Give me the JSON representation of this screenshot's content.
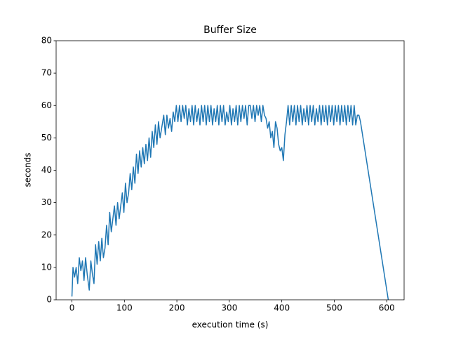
{
  "chart_data": {
    "type": "line",
    "title": "Buffer Size",
    "x_label": "execution time (s)",
    "y_label": "seconds",
    "color": "#1f77b4",
    "x": [
      0,
      2,
      5,
      8,
      11,
      14,
      17,
      20,
      23,
      26,
      29,
      33,
      36,
      39,
      42,
      45,
      48,
      51,
      54,
      57,
      60,
      63,
      66,
      69,
      72,
      75,
      78,
      81,
      84,
      87,
      90,
      93,
      96,
      99,
      102,
      105,
      108,
      111,
      114,
      117,
      120,
      123,
      126,
      129,
      132,
      135,
      138,
      141,
      144,
      147,
      150,
      153,
      156,
      159,
      162,
      165,
      168,
      171,
      175,
      178,
      181,
      184,
      187,
      190,
      193,
      196,
      199,
      202,
      205,
      208,
      211,
      214,
      217,
      220,
      223,
      226,
      229,
      232,
      235,
      238,
      241,
      244,
      247,
      250,
      253,
      256,
      259,
      262,
      265,
      268,
      271,
      274,
      277,
      280,
      283,
      286,
      289,
      292,
      295,
      298,
      301,
      304,
      307,
      310,
      313,
      316,
      319,
      322,
      325,
      328,
      331,
      334,
      337,
      340,
      343,
      346,
      349,
      352,
      355,
      358,
      361,
      364,
      367,
      370,
      373,
      376,
      379,
      382,
      385,
      388,
      391,
      394,
      397,
      400,
      403,
      406,
      409,
      412,
      415,
      418,
      421,
      424,
      427,
      430,
      433,
      436,
      439,
      442,
      445,
      448,
      451,
      454,
      457,
      460,
      463,
      466,
      469,
      472,
      475,
      478,
      481,
      484,
      487,
      490,
      493,
      496,
      499,
      502,
      505,
      508,
      511,
      514,
      517,
      520,
      523,
      526,
      529,
      532,
      535,
      538,
      541,
      544,
      547,
      550,
      603
    ],
    "values": [
      1,
      10,
      7,
      10,
      5,
      13,
      9,
      12,
      6,
      13,
      8,
      3,
      12,
      8,
      5,
      17,
      11,
      18,
      12,
      19,
      13,
      16,
      23,
      17,
      27,
      21,
      25,
      29,
      23,
      30,
      25,
      29,
      33,
      27,
      36,
      30,
      33,
      39,
      34,
      41,
      36,
      45,
      39,
      46,
      41,
      47,
      42,
      48,
      43,
      50,
      44,
      52,
      47,
      54,
      48,
      55,
      50,
      53,
      57,
      51,
      57,
      53,
      56,
      52,
      58,
      55,
      60,
      55,
      60,
      55,
      60,
      56,
      60,
      54,
      59,
      55,
      60,
      54,
      60,
      55,
      59,
      54,
      60,
      55,
      60,
      54,
      60,
      55,
      60,
      54,
      59,
      55,
      60,
      54,
      60,
      55,
      60,
      54,
      58,
      55,
      60,
      54,
      59,
      55,
      60,
      54,
      60,
      55,
      60,
      56,
      60,
      54,
      60,
      60,
      56,
      60,
      55,
      60,
      57,
      60,
      55,
      60,
      57,
      56,
      53,
      55,
      50,
      52,
      47,
      55,
      53,
      48,
      46,
      47,
      43,
      51,
      55,
      60,
      54,
      60,
      55,
      60,
      54,
      60,
      55,
      60,
      54,
      59,
      55,
      60,
      54,
      60,
      55,
      60,
      54,
      59,
      55,
      60,
      54,
      60,
      55,
      60,
      54,
      60,
      55,
      60,
      54,
      60,
      55,
      60,
      54,
      60,
      55,
      60,
      54,
      60,
      55,
      60,
      54,
      60,
      54,
      57,
      57,
      55,
      0
    ],
    "xlim": [
      -30.15,
      633.15
    ],
    "ylim": [
      0,
      80
    ],
    "xticks": [
      0,
      100,
      200,
      300,
      400,
      500,
      600
    ],
    "yticks": [
      0,
      10,
      20,
      30,
      40,
      50,
      60,
      70,
      80
    ]
  }
}
